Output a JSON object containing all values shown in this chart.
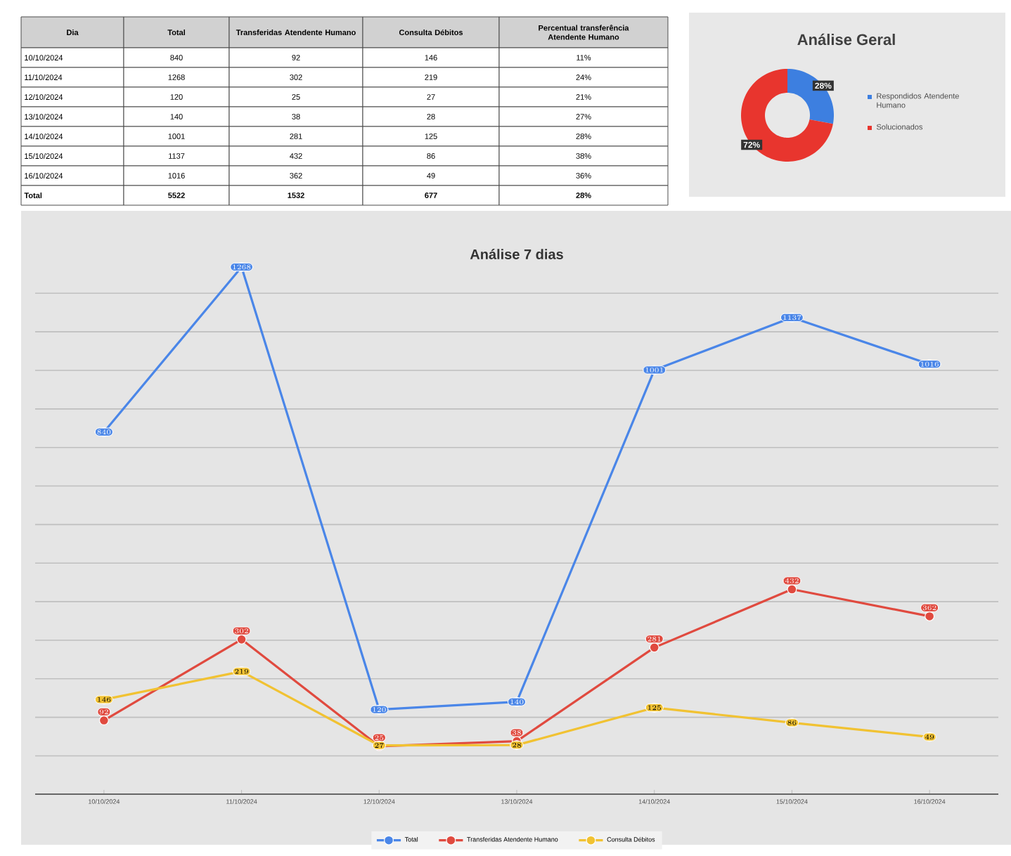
{
  "chart_data": [
    {
      "type": "other",
      "annotations": [
        "Dia",
        "Total",
        "Transferidas Atendente Humano",
        "Consulta Débitos",
        "Percentual transferência Atendente Humano",
        "10/10/2024",
        "840",
        "92",
        "146",
        "11%",
        "11/10/2024",
        "1268",
        "302",
        "219",
        "24%",
        "12/10/2024",
        "120",
        "25",
        "27",
        "21%",
        "13/10/2024",
        "140",
        "38",
        "28",
        "27%",
        "14/10/2024",
        "1001",
        "281",
        "125",
        "28%",
        "15/10/2024",
        "1137",
        "432",
        "86",
        "38%",
        "16/10/2024",
        "1016",
        "362",
        "49",
        "36%",
        "Total",
        "5522",
        "1532",
        "677",
        "28%"
      ]
    },
    {
      "type": "donut",
      "title": "Análise Geral",
      "categories": [
        "Respondidos Atendente Humano",
        "Solucionados"
      ],
      "values": [
        28,
        72
      ],
      "colors": [
        "#3d7fe0",
        "#e8352e"
      ],
      "value_labels": [
        "28%",
        "72%"
      ],
      "legend": "right"
    },
    {
      "type": "line",
      "title": "Análise 7 dias",
      "categories": [
        "10/10/2024",
        "11/10/2024",
        "12/10/2024",
        "13/10/2024",
        "14/10/2024",
        "15/10/2024",
        "16/10/2024"
      ],
      "series": [
        {
          "name": "Total",
          "color": "#4a86e8",
          "values": [
            840,
            1268,
            120,
            140,
            1001,
            1137,
            1016
          ]
        },
        {
          "name": "Transferidas Atendente Humano",
          "color": "#e04a3f",
          "values": [
            92,
            302,
            25,
            38,
            281,
            432,
            362
          ]
        },
        {
          "name": "Consulta Débitos",
          "color": "#f1c232",
          "values": [
            146,
            219,
            27,
            28,
            125,
            86,
            49
          ]
        }
      ],
      "tick_labels": "x",
      "grid": "y",
      "legend": "bottom",
      "marker": "circle",
      "line_style": "solid",
      "data_labels": true
    }
  ]
}
